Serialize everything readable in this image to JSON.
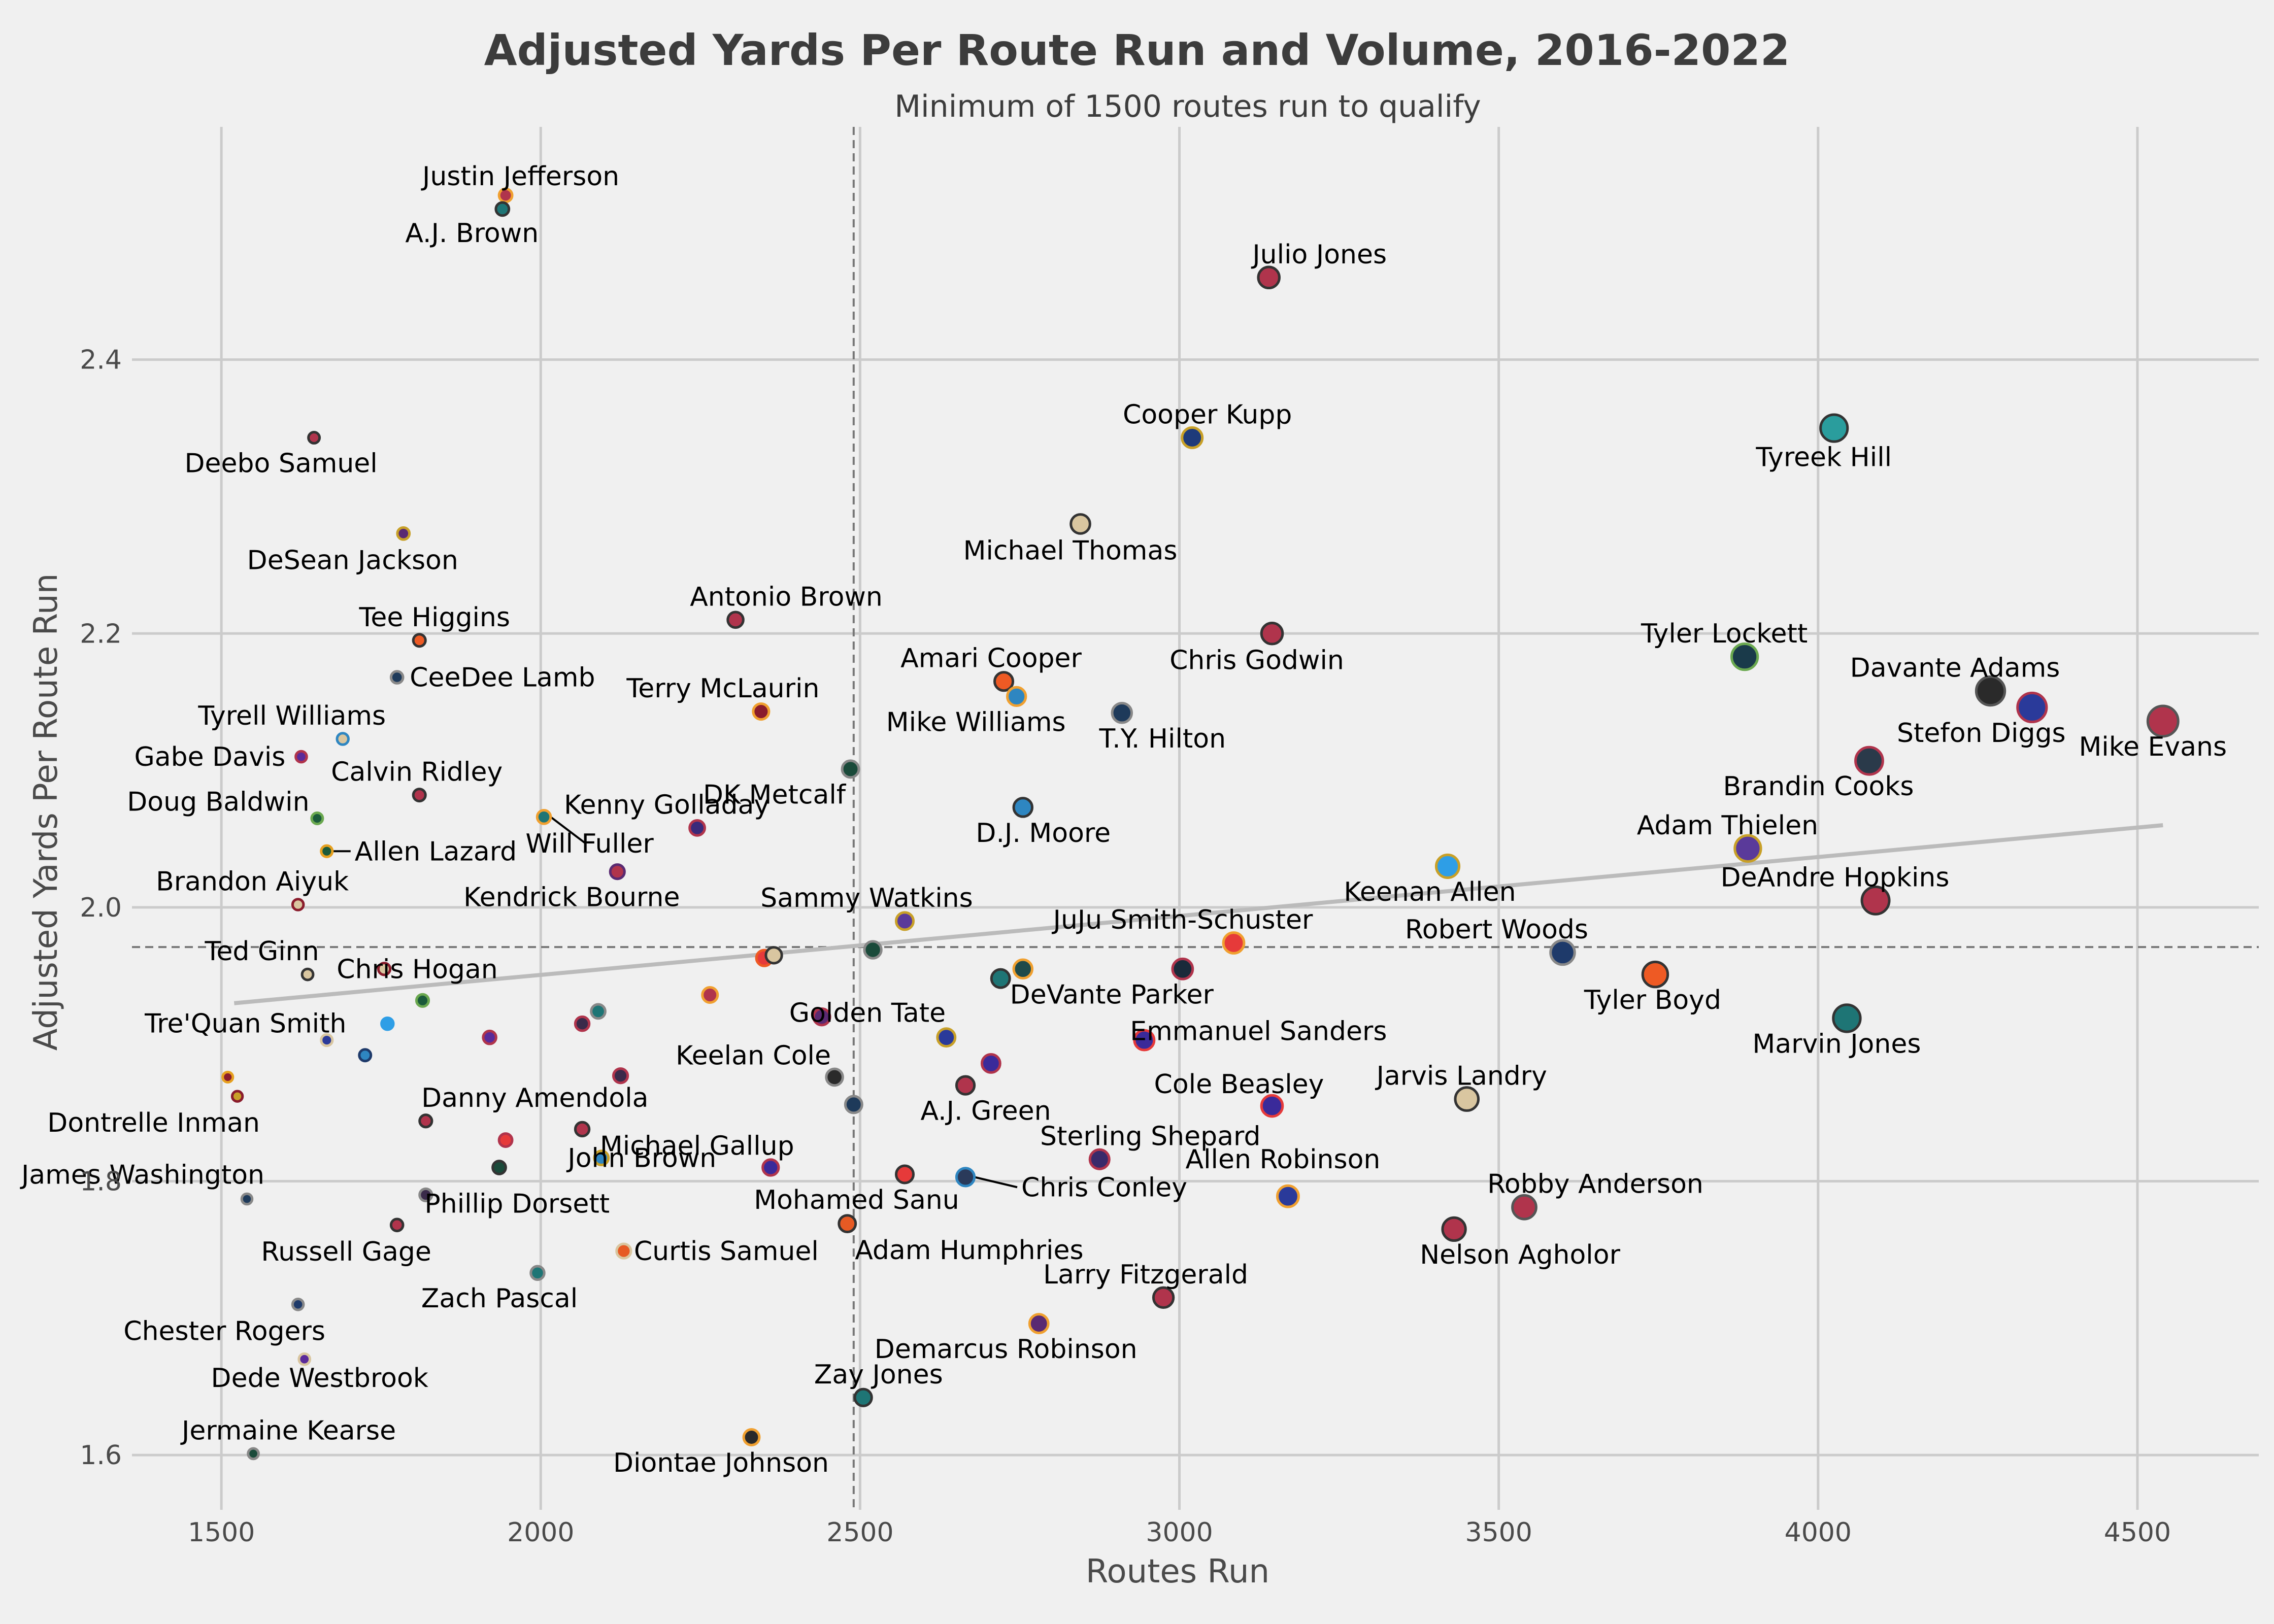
{
  "chart_data": {
    "type": "scatter",
    "title": "Adjusted Yards Per Route Run and Volume, 2016-2022",
    "subtitle": "Minimum of 1500 routes run to qualify",
    "xlabel": "Routes Run",
    "ylabel": "Adjusted Yards Per Route Run",
    "xlim": [
      1360,
      4690
    ],
    "ylim": [
      1.56,
      2.57
    ],
    "xticks": [
      1500,
      2000,
      2500,
      3000,
      3500,
      4000,
      4500
    ],
    "yticks": [
      1.6,
      1.8,
      2.0,
      2.2,
      2.4
    ],
    "grid": true,
    "reference_lines": {
      "x_mean": 2490,
      "y_mean": 1.971
    },
    "trend_line": {
      "x": [
        1520,
        4540
      ],
      "y": [
        1.93,
        2.06
      ],
      "color": "#bbbbbb"
    },
    "points": [
      {
        "name": "Justin Jefferson",
        "x": 1945,
        "y": 2.52,
        "color": "#b0344c",
        "edge": "#f0a030",
        "label": true
      },
      {
        "name": "A.J. Brown",
        "x": 1940,
        "y": 2.51,
        "color": "#1e7575",
        "edge": "#333333",
        "label": true
      },
      {
        "name": "Julio Jones",
        "x": 3140,
        "y": 2.46,
        "color": "#b0344c",
        "edge": "#333333",
        "label": true
      },
      {
        "name": "Deebo Samuel",
        "x": 1645,
        "y": 2.343,
        "color": "#b0344c",
        "edge": "#333333",
        "label": true
      },
      {
        "name": "Cooper Kupp",
        "x": 3020,
        "y": 2.343,
        "color": "#1e3a7a",
        "edge": "#c8a028",
        "label": true
      },
      {
        "name": "Tyreek Hill",
        "x": 4025,
        "y": 2.35,
        "color": "#2a9d9d",
        "edge": "#333333",
        "label": true
      },
      {
        "name": "DeSean Jackson",
        "x": 1785,
        "y": 2.273,
        "color": "#5a2a72",
        "edge": "#c8a028",
        "label": true
      },
      {
        "name": "Michael Thomas",
        "x": 2845,
        "y": 2.28,
        "color": "#d9c6a0",
        "edge": "#333333",
        "label": true
      },
      {
        "name": "Antonio Brown",
        "x": 2305,
        "y": 2.21,
        "color": "#b0344c",
        "edge": "#333333",
        "label": true
      },
      {
        "name": "Tee Higgins",
        "x": 1810,
        "y": 2.195,
        "color": "#ee5a24",
        "edge": "#333333",
        "label": true
      },
      {
        "name": "Chris Godwin",
        "x": 3145,
        "y": 2.2,
        "color": "#b0344c",
        "edge": "#333333",
        "label": true
      },
      {
        "name": "CeeDee Lamb",
        "x": 1775,
        "y": 2.168,
        "color": "#1e3a5a",
        "edge": "#888888",
        "label": true
      },
      {
        "name": "Amari Cooper",
        "x": 2725,
        "y": 2.165,
        "color": "#ee5a24",
        "edge": "#333333",
        "label": true
      },
      {
        "name": "Tyler Lockett",
        "x": 3885,
        "y": 2.183,
        "color": "#1a3a4a",
        "edge": "#6aa84f",
        "label": true
      },
      {
        "name": "Terry McLaurin",
        "x": 2345,
        "y": 2.143,
        "color": "#8a1c2c",
        "edge": "#f0a030",
        "label": true
      },
      {
        "name": "Mike Williams",
        "x": 2745,
        "y": 2.154,
        "color": "#2e86c1",
        "edge": "#f0a030",
        "label": true
      },
      {
        "name": "T.Y. Hilton",
        "x": 2910,
        "y": 2.142,
        "color": "#1e3a5a",
        "edge": "#888888",
        "label": true
      },
      {
        "name": "Davante Adams",
        "x": 4270,
        "y": 2.158,
        "color": "#2a2a2a",
        "edge": "#555555",
        "label": true
      },
      {
        "name": "Stefon Diggs",
        "x": 4335,
        "y": 2.146,
        "color": "#2a3a9a",
        "edge": "#b0344c",
        "label": true
      },
      {
        "name": "Mike Evans",
        "x": 4540,
        "y": 2.136,
        "color": "#b0344c",
        "edge": "#555555",
        "label": true
      },
      {
        "name": "Tyrell Williams",
        "x": 1690,
        "y": 2.123,
        "color": "#d9c6a0",
        "edge": "#2e86c1",
        "label": true
      },
      {
        "name": "Gabe Davis",
        "x": 1625,
        "y": 2.11,
        "color": "#5a2a9a",
        "edge": "#b0344c",
        "label": true
      },
      {
        "name": "Brandin Cooks",
        "x": 4080,
        "y": 2.107,
        "color": "#2a3a4a",
        "edge": "#b0344c",
        "label": true
      },
      {
        "name": "DK Metcalf",
        "x": 2485,
        "y": 2.101,
        "color": "#1a4a3a",
        "edge": "#888888",
        "label": true
      },
      {
        "name": "D.J. Moore",
        "x": 2755,
        "y": 2.073,
        "color": "#2e86c1",
        "edge": "#333333",
        "label": true
      },
      {
        "name": "Calvin Ridley",
        "x": 1810,
        "y": 2.082,
        "color": "#b0344c",
        "edge": "#333333",
        "label": true
      },
      {
        "name": "Doug Baldwin",
        "x": 1650,
        "y": 2.065,
        "color": "#1a5a3a",
        "edge": "#6aa84f",
        "label": true
      },
      {
        "name": "Will Fuller",
        "x": 2005,
        "y": 2.066,
        "color": "#1e7575",
        "edge": "#f0a030",
        "label": true
      },
      {
        "name": "Kenny Golladay",
        "x": 2245,
        "y": 2.058,
        "color": "#3a2a7a",
        "edge": "#b0344c",
        "label": true
      },
      {
        "name": "Allen Lazard",
        "x": 1665,
        "y": 2.041,
        "color": "#1a5a3a",
        "edge": "#e6a020",
        "label": true
      },
      {
        "name": "Adam Thielen",
        "x": 3890,
        "y": 2.043,
        "color": "#5a3a9a",
        "edge": "#c8a028",
        "label": true
      },
      {
        "name": "Keenan Allen",
        "x": 3420,
        "y": 2.03,
        "color": "#2e9ee6",
        "edge": "#c8a028",
        "label": true
      },
      {
        "name": "Kendrick Bourne",
        "x": 2120,
        "y": 2.026,
        "color": "#b0344c",
        "edge": "#5a2a72",
        "label": true
      },
      {
        "name": "DeAndre Hopkins",
        "x": 4090,
        "y": 2.005,
        "color": "#b0344c",
        "edge": "#333333",
        "label": true
      },
      {
        "name": "Brandon Aiyuk",
        "x": 1620,
        "y": 2.002,
        "color": "#d9c6a0",
        "edge": "#8a1c2c",
        "label": true
      },
      {
        "name": "Sammy Watkins",
        "x": 2570,
        "y": 1.99,
        "color": "#5a3a9a",
        "edge": "#c8a028",
        "label": true
      },
      {
        "name": "JuJu Smith-Schuster",
        "x": 3085,
        "y": 1.974,
        "color": "#e63a3a",
        "edge": "#f0a030",
        "label": true
      },
      {
        "name": "Robert Woods",
        "x": 3600,
        "y": 1.967,
        "color": "#1e3a6a",
        "edge": "#888888",
        "label": true
      },
      {
        "name": "Ted Ginn",
        "x": 1635,
        "y": 1.951,
        "color": "#d9c6a0",
        "edge": "#333333",
        "label": true
      },
      {
        "name": "Chris Hogan",
        "x": 1755,
        "y": 1.955,
        "color": "#d9c6a0",
        "edge": "#8a1c2c",
        "label": true
      },
      {
        "name": "Tyler Boyd",
        "x": 3745,
        "y": 1.951,
        "color": "#ee5a24",
        "edge": "#333333",
        "label": true
      },
      {
        "name": "DeVante Parker",
        "x": 2755,
        "y": 1.955,
        "color": "#1e4a4a",
        "edge": "#f0a030",
        "label": true
      },
      {
        "name": "Marvin Jones",
        "x": 4045,
        "y": 1.919,
        "color": "#1e7575",
        "edge": "#333333",
        "label": true
      },
      {
        "name": "Tre'Quan Smith",
        "x": 1665,
        "y": 1.903,
        "color": "#2a3a9a",
        "edge": "#d9c6a0",
        "label": true
      },
      {
        "name": "Golden Tate",
        "x": 2440,
        "y": 1.92,
        "color": "#5a2a72",
        "edge": "#b0344c",
        "label": true
      },
      {
        "name": "Emmanuel Sanders",
        "x": 2945,
        "y": 1.903,
        "color": "#3a2a9a",
        "edge": "#e63a3a",
        "label": true
      },
      {
        "name": "Keelan Cole",
        "x": 2460,
        "y": 1.876,
        "color": "#2a2a2a",
        "edge": "#888888",
        "label": true
      },
      {
        "name": "A.J. Green",
        "x": 2665,
        "y": 1.87,
        "color": "#b0344c",
        "edge": "#333333",
        "label": true
      },
      {
        "name": "Cole Beasley",
        "x": 3145,
        "y": 1.855,
        "color": "#3a2a9a",
        "edge": "#e63a3a",
        "label": true
      },
      {
        "name": "Jarvis Landry",
        "x": 3450,
        "y": 1.86,
        "color": "#d9c6a0",
        "edge": "#333333",
        "label": true
      },
      {
        "name": "Dontrelle Inman",
        "x": 1525,
        "y": 1.862,
        "color": "#c8a028",
        "edge": "#8a1c2c",
        "label": true
      },
      {
        "name": "Danny Amendola",
        "x": 1820,
        "y": 1.844,
        "color": "#b0344c",
        "edge": "#333333",
        "label": true
      },
      {
        "name": "Michael Gallup",
        "x": 2360,
        "y": 1.81,
        "color": "#3a2a9a",
        "edge": "#b0344c",
        "label": true
      },
      {
        "name": "John Brown",
        "x": 2095,
        "y": 1.817,
        "color": "#2e86c1",
        "edge": "#c8a028",
        "label": true
      },
      {
        "name": "Sterling Shepard",
        "x": 2875,
        "y": 1.816,
        "color": "#3a2a6a",
        "edge": "#b0344c",
        "label": true
      },
      {
        "name": "James Washington",
        "x": 1540,
        "y": 1.787,
        "color": "#1e3a5a",
        "edge": "#888888",
        "label": true
      },
      {
        "name": "Phillip Dorsett",
        "x": 1820,
        "y": 1.79,
        "color": "#3a2a4a",
        "edge": "#888888",
        "label": true
      },
      {
        "name": "Mohamed Sanu",
        "x": 2570,
        "y": 1.805,
        "color": "#e63a3a",
        "edge": "#333333",
        "label": true
      },
      {
        "name": "Chris Conley",
        "x": 2665,
        "y": 1.803,
        "color": "#2a3a5a",
        "edge": "#2e86c1",
        "label": true
      },
      {
        "name": "Allen Robinson",
        "x": 3170,
        "y": 1.789,
        "color": "#2a3a9a",
        "edge": "#f0a030",
        "label": true
      },
      {
        "name": "Robby Anderson",
        "x": 3540,
        "y": 1.781,
        "color": "#b0344c",
        "edge": "#555555",
        "label": true
      },
      {
        "name": "Russell Gage",
        "x": 1775,
        "y": 1.768,
        "color": "#b0344c",
        "edge": "#333333",
        "label": true
      },
      {
        "name": "Curtis Samuel",
        "x": 2130,
        "y": 1.749,
        "color": "#e65a24",
        "edge": "#d9c6a0",
        "label": true
      },
      {
        "name": "Adam Humphries",
        "x": 2480,
        "y": 1.769,
        "color": "#e65a24",
        "edge": "#333333",
        "label": true
      },
      {
        "name": "Nelson Agholor",
        "x": 3430,
        "y": 1.765,
        "color": "#b0344c",
        "edge": "#333333",
        "label": true
      },
      {
        "name": "Zach Pascal",
        "x": 1995,
        "y": 1.733,
        "color": "#1e7575",
        "edge": "#888888",
        "label": true
      },
      {
        "name": "Larry Fitzgerald",
        "x": 2975,
        "y": 1.715,
        "color": "#b0344c",
        "edge": "#333333",
        "label": true
      },
      {
        "name": "Chester Rogers",
        "x": 1620,
        "y": 1.71,
        "color": "#1e3a6a",
        "edge": "#888888",
        "label": true
      },
      {
        "name": "Demarcus Robinson",
        "x": 2780,
        "y": 1.696,
        "color": "#5a2a72",
        "edge": "#f0a030",
        "label": true
      },
      {
        "name": "Dede Westbrook",
        "x": 1630,
        "y": 1.67,
        "color": "#5a2a9a",
        "edge": "#d9c6a0",
        "label": true
      },
      {
        "name": "Zay Jones",
        "x": 2505,
        "y": 1.642,
        "color": "#1e7575",
        "edge": "#333333",
        "label": true
      },
      {
        "name": "Diontae Johnson",
        "x": 2330,
        "y": 1.613,
        "color": "#2a2a2a",
        "edge": "#f0a030",
        "label": true
      },
      {
        "name": "Jermaine Kearse",
        "x": 1550,
        "y": 1.601,
        "color": "#1a4a3a",
        "edge": "#888888",
        "label": true
      },
      {
        "name": "",
        "x": 1510,
        "y": 1.876,
        "color": "#8a1c2c",
        "edge": "#e6a020",
        "label": false
      },
      {
        "name": "",
        "x": 1725,
        "y": 1.892,
        "color": "#2e86c1",
        "edge": "#1e3a6a",
        "label": false
      },
      {
        "name": "",
        "x": 1760,
        "y": 1.915,
        "color": "#2e9ee6",
        "edge": "#2e9ee6",
        "label": false
      },
      {
        "name": "",
        "x": 1815,
        "y": 1.932,
        "color": "#1a5a3a",
        "edge": "#6aa84f",
        "label": false
      },
      {
        "name": "",
        "x": 1920,
        "y": 1.905,
        "color": "#5a2a9a",
        "edge": "#b0344c",
        "label": false
      },
      {
        "name": "",
        "x": 1935,
        "y": 1.81,
        "color": "#1a4a3a",
        "edge": "#333333",
        "label": false
      },
      {
        "name": "",
        "x": 1945,
        "y": 1.83,
        "color": "#e63a3a",
        "edge": "#b0344c",
        "label": false
      },
      {
        "name": "",
        "x": 2065,
        "y": 1.915,
        "color": "#3a2a4a",
        "edge": "#b0344c",
        "label": false
      },
      {
        "name": "",
        "x": 2090,
        "y": 1.924,
        "color": "#1e7575",
        "edge": "#888888",
        "label": false
      },
      {
        "name": "",
        "x": 2065,
        "y": 1.838,
        "color": "#b0344c",
        "edge": "#333333",
        "label": false
      },
      {
        "name": "",
        "x": 2125,
        "y": 1.877,
        "color": "#3a2a4a",
        "edge": "#b0344c",
        "label": false
      },
      {
        "name": "",
        "x": 2265,
        "y": 1.936,
        "color": "#b0344c",
        "edge": "#f0a030",
        "label": false
      },
      {
        "name": "",
        "x": 2350,
        "y": 1.963,
        "color": "#e63a3a",
        "edge": "#ee5a24",
        "label": false
      },
      {
        "name": "",
        "x": 2365,
        "y": 1.965,
        "color": "#d9c6a0",
        "edge": "#333333",
        "label": false
      },
      {
        "name": "",
        "x": 2520,
        "y": 1.969,
        "color": "#1a4a3a",
        "edge": "#888888",
        "label": false
      },
      {
        "name": "",
        "x": 2490,
        "y": 1.856,
        "color": "#1e3a5a",
        "edge": "#888888",
        "label": false
      },
      {
        "name": "",
        "x": 2635,
        "y": 1.905,
        "color": "#2a3a9a",
        "edge": "#c8a028",
        "label": false
      },
      {
        "name": "",
        "x": 2705,
        "y": 1.886,
        "color": "#3a2a9a",
        "edge": "#b0344c",
        "label": false
      },
      {
        "name": "",
        "x": 2720,
        "y": 1.948,
        "color": "#1e7575",
        "edge": "#333333",
        "label": false
      },
      {
        "name": "",
        "x": 3005,
        "y": 1.955,
        "color": "#1a2a3a",
        "edge": "#b0344c",
        "label": false
      }
    ]
  }
}
